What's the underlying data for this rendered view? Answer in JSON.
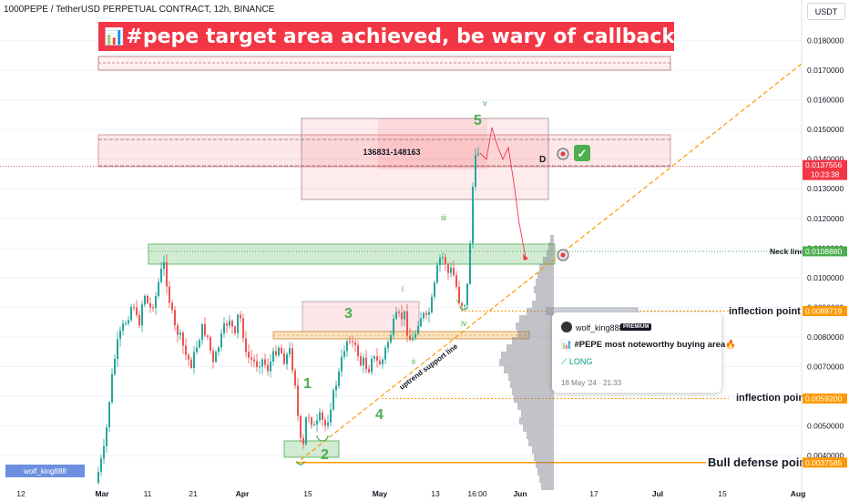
{
  "header": {
    "symbol_line": "1000PEPE / TetherUSD PERPETUAL CONTRACT, 12h, BINANCE",
    "currency_button": "USDT"
  },
  "banner": {
    "text": "#pepe target area achieved, be wary of callbacks",
    "icon_left": "chart-bar-icon",
    "icon_right": "warning-icon",
    "color": "#f23645"
  },
  "idea_card": {
    "author": "wolf_king888",
    "badge": "PREMIUM",
    "message": "#PEPE most noteworthy buying area",
    "direction": "LONG",
    "date": "18 May '24 · 21:33"
  },
  "watermark": "wolf_king888",
  "annotations": {
    "zone_label": "136831-148163",
    "point_d": "D",
    "neck_line": "Neck line",
    "inflection_1": "inflection point 1",
    "inflection": "inflection point",
    "bull_defense": "Bull defense point",
    "uptrend_line": "uptrend support line",
    "waves": [
      "1",
      "2",
      "3",
      "4",
      "5"
    ],
    "subwaves": [
      "i",
      "ii",
      "iii",
      "iv",
      "v",
      "v"
    ]
  },
  "chart_data": {
    "type": "candlestick",
    "x_tick_labels": [
      "12",
      "Mar",
      "11",
      "21",
      "Apr",
      "15",
      "May",
      "13",
      "16:00",
      "Jun",
      "17",
      "Jul",
      "15",
      "Aug"
    ],
    "y_tick_labels": [
      "0.0180000",
      "0.0170000",
      "0.0160000",
      "0.0150000",
      "0.0140000",
      "0.0130000",
      "0.0120000",
      "0.0110000",
      "0.0100000",
      "0.0090000",
      "0.0080000",
      "0.0070000",
      "0.0060000",
      "0.0050000",
      "0.0040000"
    ],
    "y_range": [
      0.0035,
      0.019
    ],
    "price_labels": [
      {
        "value": 0.0137556,
        "text": "0.0137556",
        "sub": "10:23:38",
        "color": "#f23645"
      },
      {
        "value": 0.010888,
        "text": "0.0108880",
        "color": "#4caf50"
      },
      {
        "value": 0.0088719,
        "text": "0.0088719",
        "color": "#ff9800"
      },
      {
        "value": 0.00592,
        "text": "0.0059200",
        "color": "#ff9800"
      },
      {
        "value": 0.0037585,
        "text": "0.0037585",
        "color": "#ff9800"
      }
    ],
    "levels": {
      "current_price": 0.0137556,
      "neck_line": 0.010888,
      "inflection_point_1": 0.0088719,
      "inflection_point": 0.00592,
      "bull_defense_point": 0.0037585
    },
    "target_zone": [
      0.0136831,
      0.0148163
    ],
    "colors": {
      "up": "#26a69a",
      "down": "#ef5350"
    }
  }
}
